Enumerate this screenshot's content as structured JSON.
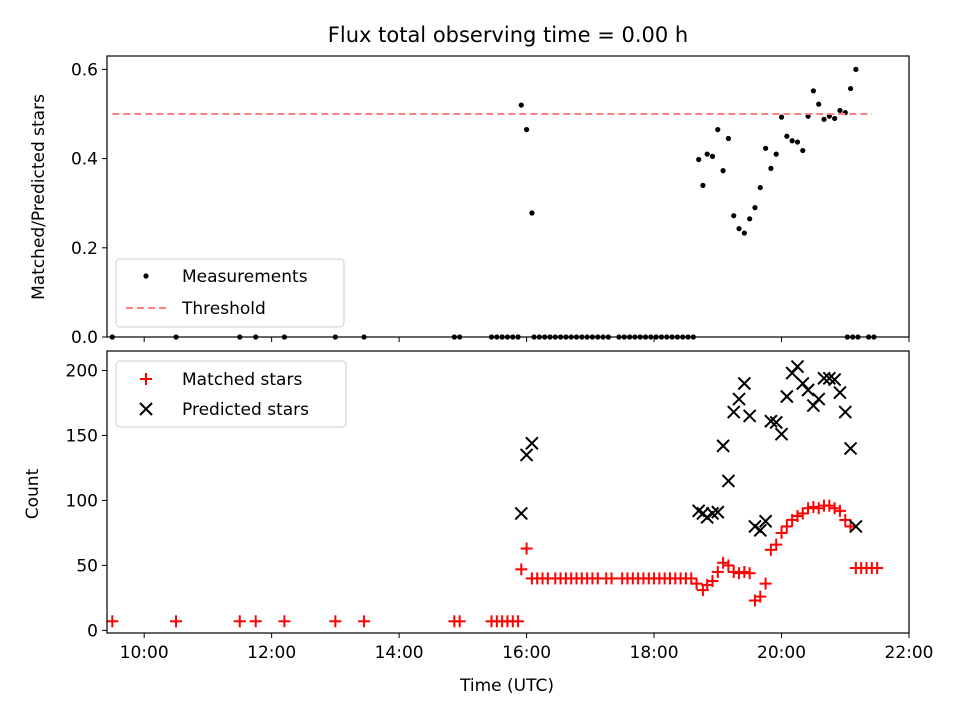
{
  "chart_data": [
    {
      "type": "scatter",
      "title": "Flux total observing time = 0.00 h",
      "ylabel": "Matched/Predicted stars",
      "xlabel": "",
      "xlim": [
        "09:25",
        "22:00"
      ],
      "ylim": [
        0,
        0.63
      ],
      "yticks": [
        0,
        0.2,
        0.4,
        0.6
      ],
      "ytick_labels": [
        "0.0",
        "0.2",
        "0.4",
        "0.6"
      ],
      "xticks": [
        "10:00",
        "12:00",
        "14:00",
        "16:00",
        "18:00",
        "20:00",
        "22:00"
      ],
      "legend_position": "lower-left",
      "series": [
        {
          "name": "Measurements",
          "marker": "dot",
          "color": "#000000",
          "x": [
            "09:30",
            "10:30",
            "11:30",
            "11:45",
            "12:12",
            "13:00",
            "13:27",
            "14:52",
            "14:57",
            "15:27",
            "15:32",
            "15:37",
            "15:42",
            "15:47",
            "15:52",
            "16:07",
            "16:12",
            "16:17",
            "16:22",
            "16:27",
            "16:32",
            "16:37",
            "16:42",
            "16:47",
            "16:52",
            "16:57",
            "17:02",
            "17:07",
            "17:12",
            "17:17",
            "17:27",
            "17:32",
            "17:37",
            "17:42",
            "17:47",
            "17:52",
            "17:57",
            "18:02",
            "18:07",
            "18:12",
            "18:17",
            "18:22",
            "18:27",
            "18:32",
            "18:37",
            "21:02",
            "21:07",
            "21:12",
            "21:22",
            "21:27",
            "15:55",
            "16:00",
            "16:05",
            "18:42",
            "18:46",
            "18:50",
            "18:55",
            "19:00",
            "19:05",
            "19:10",
            "19:15",
            "19:20",
            "19:25",
            "19:30",
            "19:35",
            "19:40",
            "19:45",
            "19:50",
            "19:55",
            "20:00",
            "20:05",
            "20:10",
            "20:15",
            "20:20",
            "20:25",
            "20:30",
            "20:35",
            "20:40",
            "20:45",
            "20:50",
            "20:55",
            "21:00",
            "21:05",
            "21:10"
          ],
          "y": [
            0,
            0,
            0,
            0,
            0,
            0,
            0,
            0,
            0,
            0,
            0,
            0,
            0,
            0,
            0,
            0,
            0,
            0,
            0,
            0,
            0,
            0,
            0,
            0,
            0,
            0,
            0,
            0,
            0,
            0,
            0,
            0,
            0,
            0,
            0,
            0,
            0,
            0,
            0,
            0,
            0,
            0,
            0,
            0,
            0,
            0,
            0,
            0,
            0,
            0,
            0.52,
            0.465,
            0.278,
            0.398,
            0.34,
            0.41,
            0.405,
            0.465,
            0.373,
            0.445,
            0.272,
            0.243,
            0.233,
            0.265,
            0.29,
            0.335,
            0.423,
            0.378,
            0.41,
            0.493,
            0.45,
            0.44,
            0.437,
            0.418,
            0.495,
            0.552,
            0.522,
            0.488,
            0.495,
            0.49,
            0.508,
            0.503,
            0.557,
            0.6
          ]
        },
        {
          "name": "Threshold",
          "style": "dashed",
          "color": "#ff7f7f",
          "x": [
            "09:30",
            "21:25"
          ],
          "y": [
            0.5,
            0.5
          ]
        }
      ]
    },
    {
      "type": "scatter",
      "title": "",
      "ylabel": "Count",
      "xlabel": "Time (UTC)",
      "xlim": [
        "09:25",
        "22:00"
      ],
      "ylim": [
        -2,
        215
      ],
      "yticks": [
        0,
        50,
        100,
        150,
        200
      ],
      "ytick_labels": [
        "0",
        "50",
        "100",
        "150",
        "200"
      ],
      "xticks": [
        "10:00",
        "12:00",
        "14:00",
        "16:00",
        "18:00",
        "20:00",
        "22:00"
      ],
      "legend_position": "upper-left",
      "series": [
        {
          "name": "Matched stars",
          "marker": "plus",
          "color": "#ff0000",
          "x": [
            "09:30",
            "10:30",
            "11:30",
            "11:45",
            "12:12",
            "13:00",
            "13:27",
            "14:52",
            "14:57",
            "15:27",
            "15:32",
            "15:37",
            "15:42",
            "15:47",
            "15:52",
            "15:55",
            "16:00",
            "16:05",
            "16:10",
            "16:15",
            "16:20",
            "16:27",
            "16:32",
            "16:37",
            "16:42",
            "16:47",
            "16:52",
            "16:57",
            "17:02",
            "17:07",
            "17:15",
            "17:20",
            "17:30",
            "17:35",
            "17:40",
            "17:45",
            "17:50",
            "17:55",
            "18:00",
            "18:05",
            "18:10",
            "18:15",
            "18:20",
            "18:25",
            "18:30",
            "18:35",
            "18:40",
            "18:46",
            "18:50",
            "18:55",
            "19:00",
            "19:05",
            "19:10",
            "19:15",
            "19:20",
            "19:25",
            "19:30",
            "19:35",
            "19:40",
            "19:45",
            "19:50",
            "19:55",
            "20:00",
            "20:05",
            "20:10",
            "20:15",
            "20:20",
            "20:25",
            "20:30",
            "20:35",
            "20:40",
            "20:45",
            "20:50",
            "20:55",
            "21:00",
            "21:05",
            "21:10",
            "21:15",
            "21:20",
            "21:25",
            "21:30"
          ],
          "y": [
            7,
            7,
            7,
            7,
            7,
            7,
            7,
            7,
            7,
            7,
            7,
            7,
            7,
            7,
            7,
            47,
            63,
            40,
            40,
            40,
            40,
            40,
            40,
            40,
            40,
            40,
            40,
            40,
            40,
            40,
            40,
            40,
            40,
            40,
            40,
            40,
            40,
            40,
            40,
            40,
            40,
            40,
            40,
            40,
            40,
            40,
            36,
            31,
            35,
            38,
            45,
            52,
            50,
            45,
            44,
            45,
            44,
            23,
            26,
            36,
            62,
            66,
            75,
            80,
            85,
            88,
            90,
            94,
            95,
            94,
            96,
            96,
            94,
            92,
            85,
            80,
            48,
            48,
            48,
            48,
            48
          ]
        },
        {
          "name": "Predicted stars",
          "marker": "x",
          "color": "#000000",
          "x": [
            "15:55",
            "16:00",
            "16:05",
            "18:42",
            "18:46",
            "18:50",
            "18:55",
            "19:00",
            "19:05",
            "19:10",
            "19:15",
            "19:20",
            "19:25",
            "19:30",
            "19:35",
            "19:40",
            "19:45",
            "19:50",
            "19:55",
            "20:00",
            "20:05",
            "20:10",
            "20:15",
            "20:20",
            "20:25",
            "20:30",
            "20:35",
            "20:40",
            "20:45",
            "20:50",
            "20:55",
            "21:00",
            "21:05",
            "21:10"
          ],
          "y": [
            90,
            135,
            144,
            92,
            90,
            87,
            90,
            91,
            142,
            115,
            168,
            178,
            190,
            165,
            80,
            77,
            84,
            161,
            160,
            151,
            180,
            198,
            203,
            190,
            185,
            173,
            178,
            194,
            194,
            193,
            183,
            168,
            140,
            80
          ]
        }
      ]
    }
  ]
}
